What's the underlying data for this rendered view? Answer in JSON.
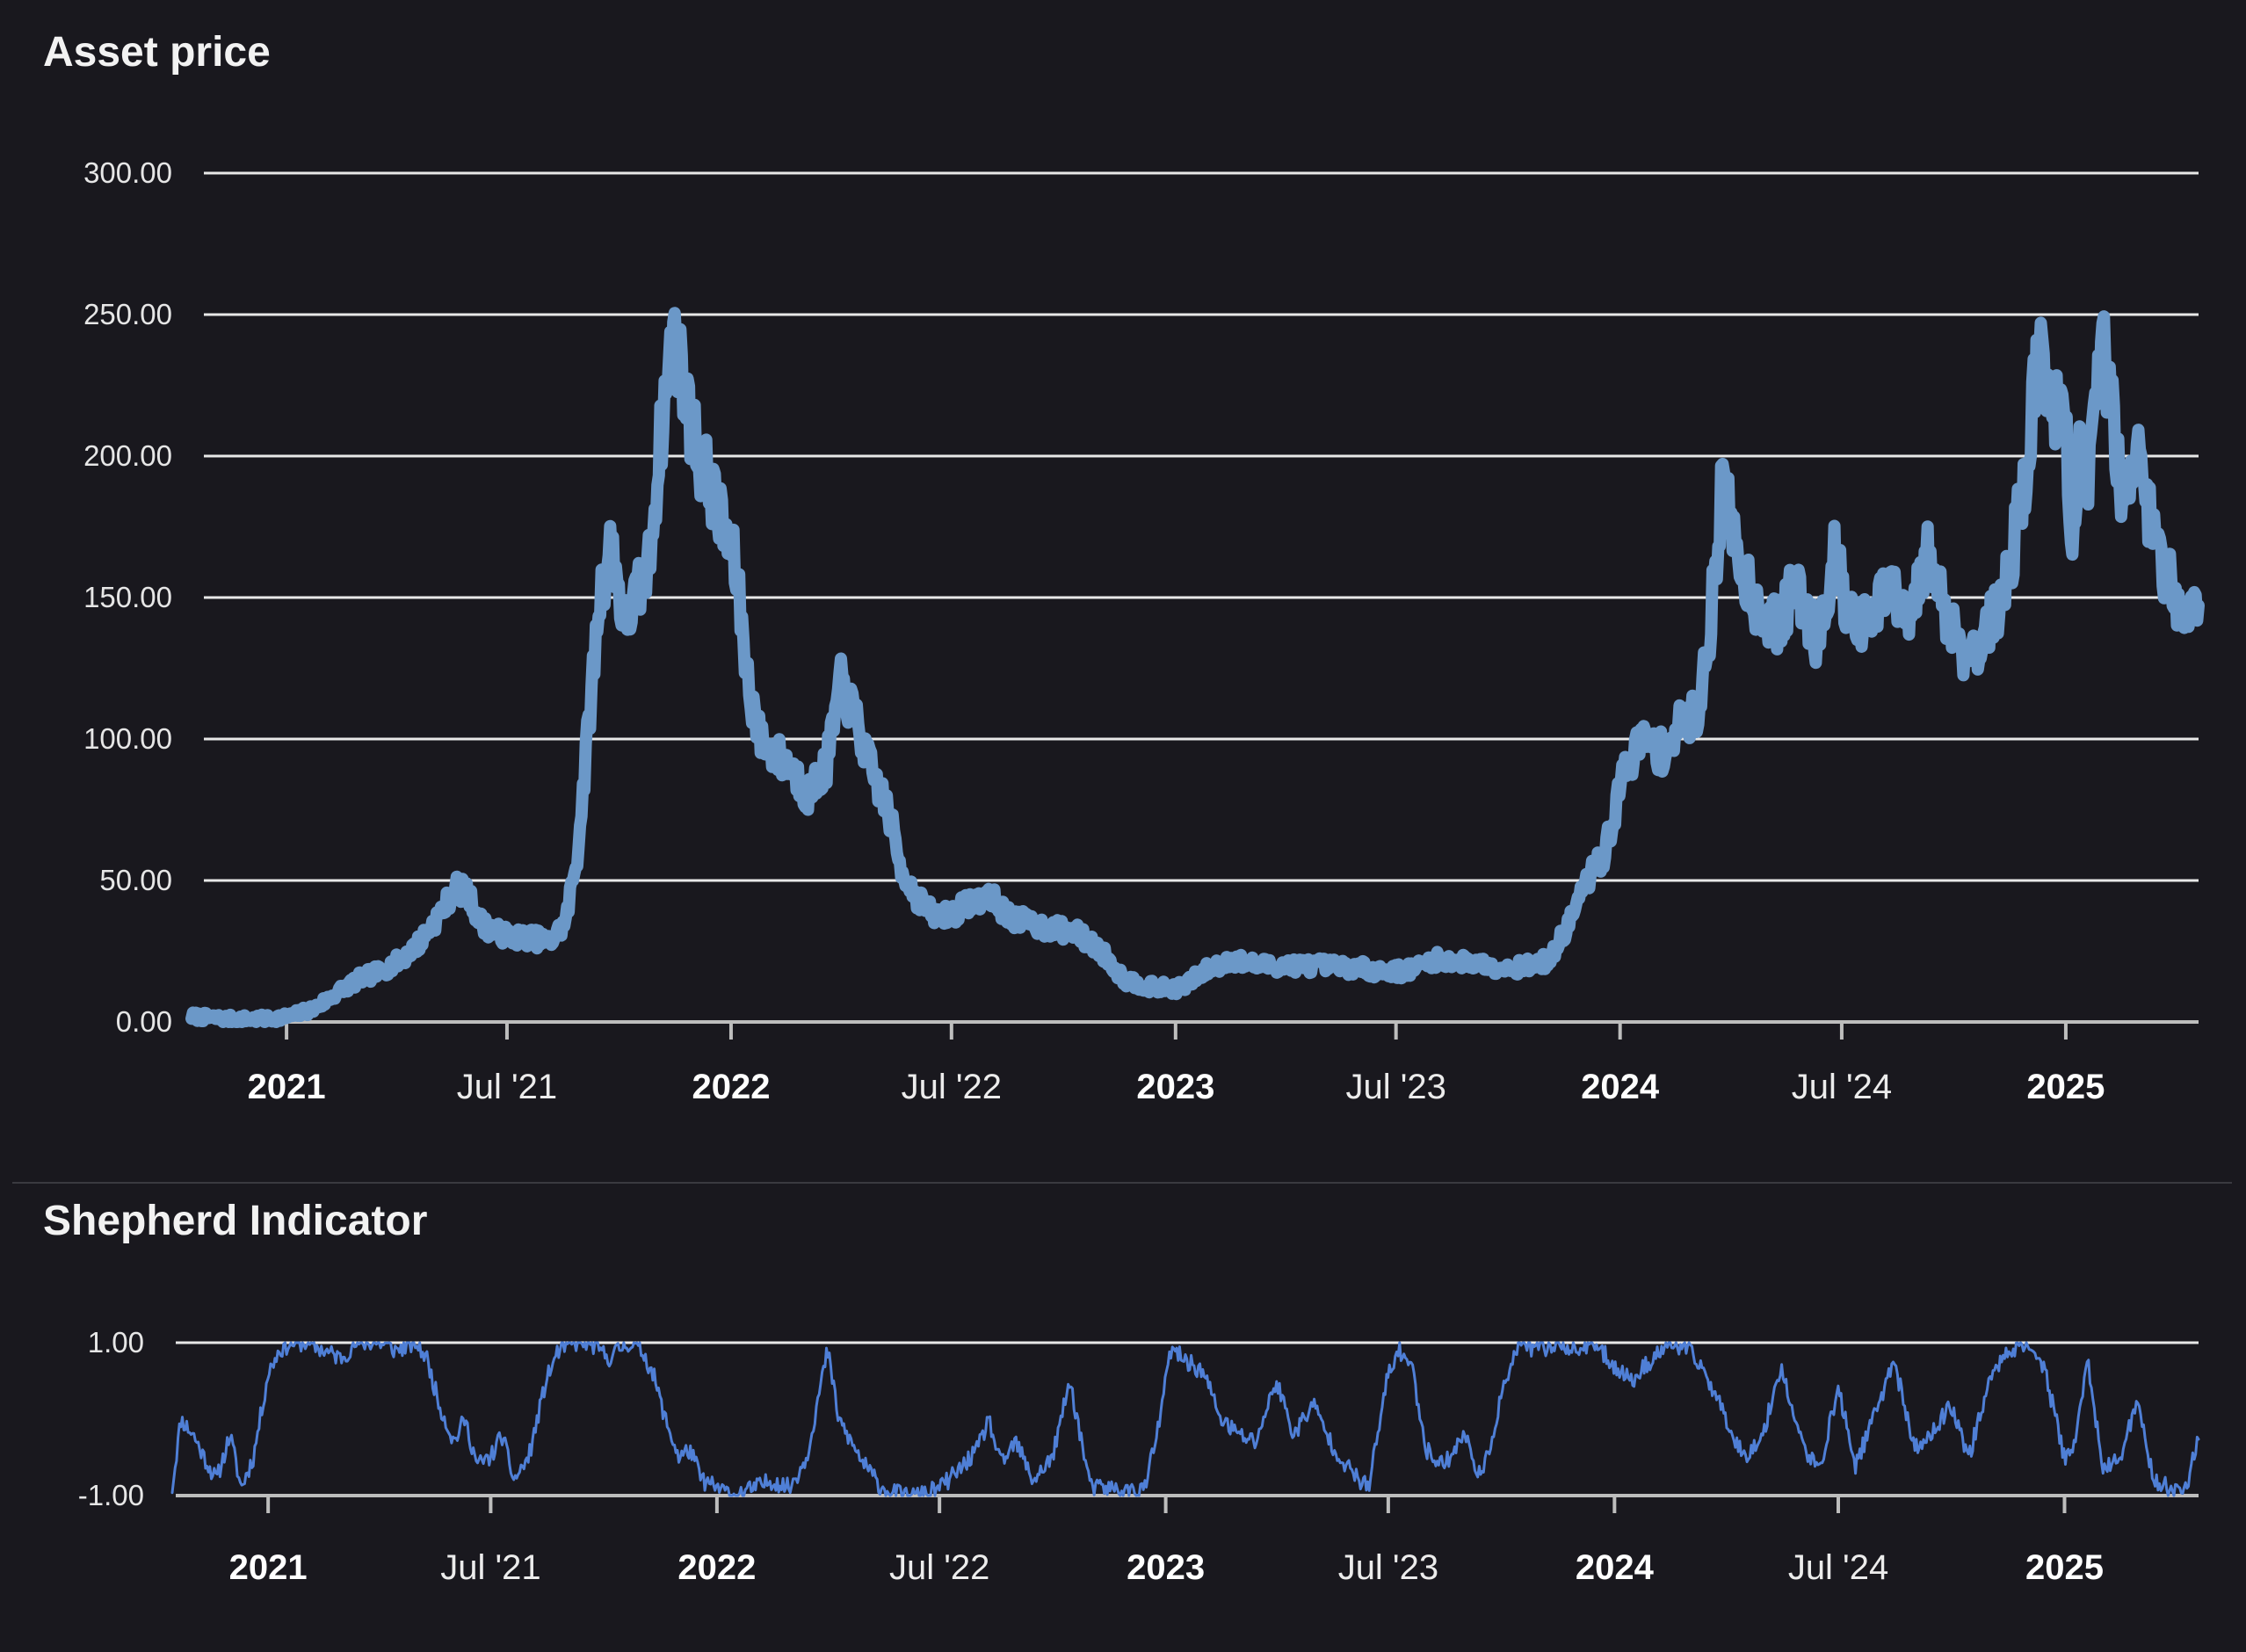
{
  "chart_data": [
    {
      "type": "line",
      "title": "Asset price",
      "ylim": [
        0,
        300
      ],
      "yticks": [
        "0.00",
        "50.00",
        "100.00",
        "150.00",
        "200.00",
        "250.00",
        "300.00"
      ],
      "ytick_values": [
        0,
        50,
        100,
        150,
        200,
        250,
        300
      ],
      "xlim": [
        "2020-10-15",
        "2025-04-20"
      ],
      "xticks": [
        {
          "date": "2021-01-01",
          "label": "2021",
          "major": true
        },
        {
          "date": "2021-07-01",
          "label": "Jul '21",
          "major": false
        },
        {
          "date": "2022-01-01",
          "label": "2022",
          "major": true
        },
        {
          "date": "2022-07-01",
          "label": "Jul '22",
          "major": false
        },
        {
          "date": "2023-01-01",
          "label": "2023",
          "major": true
        },
        {
          "date": "2023-07-01",
          "label": "Jul '23",
          "major": false
        },
        {
          "date": "2024-01-01",
          "label": "2024",
          "major": true
        },
        {
          "date": "2024-07-01",
          "label": "Jul '24",
          "major": false
        },
        {
          "date": "2025-01-01",
          "label": "2025",
          "major": true
        }
      ],
      "grid": true,
      "color": "#6b98c8",
      "series": [
        {
          "x": [
            "2020-10-15",
            "2020-11-15",
            "2020-12-15",
            "2021-01-05",
            "2021-01-25",
            "2021-02-10",
            "2021-03-01",
            "2021-03-20",
            "2021-04-05",
            "2021-04-20",
            "2021-05-10",
            "2021-05-20",
            "2021-05-30",
            "2021-06-10",
            "2021-06-20",
            "2021-07-05",
            "2021-07-20",
            "2021-08-05",
            "2021-08-18",
            "2021-08-28",
            "2021-09-05",
            "2021-09-15",
            "2021-09-25",
            "2021-10-05",
            "2021-10-15",
            "2021-10-25",
            "2021-11-05",
            "2021-11-15",
            "2021-11-25",
            "2021-12-05",
            "2021-12-15",
            "2021-12-25",
            "2022-01-05",
            "2022-01-15",
            "2022-01-25",
            "2022-02-05",
            "2022-02-20",
            "2022-03-05",
            "2022-03-20",
            "2022-04-01",
            "2022-04-15",
            "2022-04-25",
            "2022-05-10",
            "2022-05-20",
            "2022-06-01",
            "2022-06-15",
            "2022-07-01",
            "2022-07-15",
            "2022-08-01",
            "2022-08-15",
            "2022-09-01",
            "2022-09-20",
            "2022-10-10",
            "2022-11-01",
            "2022-11-20",
            "2022-12-15",
            "2023-01-05",
            "2023-01-25",
            "2023-02-15",
            "2023-03-10",
            "2023-04-01",
            "2023-05-01",
            "2023-06-01",
            "2023-06-20",
            "2023-07-10",
            "2023-08-01",
            "2023-09-01",
            "2023-10-01",
            "2023-10-20",
            "2023-11-05",
            "2023-11-20",
            "2023-12-05",
            "2023-12-20",
            "2024-01-05",
            "2024-01-20",
            "2024-02-05",
            "2024-02-20",
            "2024-03-05",
            "2024-03-15",
            "2024-03-25",
            "2024-04-10",
            "2024-04-25",
            "2024-05-10",
            "2024-05-25",
            "2024-06-10",
            "2024-06-25",
            "2024-07-10",
            "2024-07-25",
            "2024-08-10",
            "2024-08-25",
            "2024-09-10",
            "2024-09-25",
            "2024-10-10",
            "2024-10-25",
            "2024-11-10",
            "2024-11-20",
            "2024-12-01",
            "2024-12-10",
            "2024-12-20",
            "2025-01-01",
            "2025-01-05",
            "2025-01-12",
            "2025-01-20",
            "2025-02-01",
            "2025-02-15",
            "2025-03-01",
            "2025-03-15",
            "2025-04-01",
            "2025-04-20"
          ],
          "y": [
            2,
            1,
            1,
            2,
            5,
            10,
            15,
            18,
            22,
            28,
            40,
            48,
            45,
            35,
            32,
            30,
            30,
            28,
            35,
            60,
            100,
            150,
            170,
            140,
            150,
            160,
            210,
            245,
            220,
            200,
            190,
            175,
            160,
            120,
            100,
            95,
            90,
            80,
            90,
            120,
            105,
            90,
            75,
            55,
            45,
            38,
            38,
            42,
            45,
            38,
            35,
            33,
            32,
            25,
            15,
            12,
            12,
            18,
            22,
            20,
            20,
            20,
            19,
            18,
            18,
            22,
            21,
            19,
            20,
            22,
            35,
            50,
            60,
            90,
            100,
            95,
            105,
            110,
            140,
            190,
            160,
            145,
            140,
            155,
            135,
            165,
            140,
            140,
            155,
            140,
            165,
            145,
            130,
            135,
            150,
            170,
            200,
            240,
            220,
            210,
            170,
            200,
            190,
            240,
            190,
            200,
            170,
            150,
            145
          ]
        }
      ]
    },
    {
      "type": "line",
      "title": "Shepherd Indicator",
      "ylim": [
        -1,
        1
      ],
      "yticks": [
        "-1.00",
        "1.00"
      ],
      "ytick_values": [
        -1,
        1
      ],
      "xlim": [
        "2020-10-15",
        "2025-04-20"
      ],
      "xticks": [
        {
          "date": "2021-01-01",
          "label": "2021",
          "major": true
        },
        {
          "date": "2021-07-01",
          "label": "Jul '21",
          "major": false
        },
        {
          "date": "2022-01-01",
          "label": "2022",
          "major": true
        },
        {
          "date": "2022-07-01",
          "label": "Jul '22",
          "major": false
        },
        {
          "date": "2023-01-01",
          "label": "2023",
          "major": true
        },
        {
          "date": "2023-07-01",
          "label": "Jul '23",
          "major": false
        },
        {
          "date": "2024-01-01",
          "label": "2024",
          "major": true
        },
        {
          "date": "2024-07-01",
          "label": "Jul '24",
          "major": false
        },
        {
          "date": "2025-01-01",
          "label": "2025",
          "major": true
        }
      ],
      "grid": true,
      "color": "#4f7fd6",
      "series": [
        {
          "x": [
            "2020-10-15",
            "2020-10-22",
            "2020-11-01",
            "2020-11-10",
            "2020-11-20",
            "2020-12-01",
            "2020-12-10",
            "2020-12-20",
            "2021-01-01",
            "2021-01-10",
            "2021-01-20",
            "2021-02-01",
            "2021-02-15",
            "2021-03-01",
            "2021-03-15",
            "2021-04-01",
            "2021-04-15",
            "2021-05-01",
            "2021-05-10",
            "2021-05-20",
            "2021-06-01",
            "2021-06-10",
            "2021-06-20",
            "2021-07-01",
            "2021-07-10",
            "2021-07-20",
            "2021-08-01",
            "2021-08-15",
            "2021-08-25",
            "2021-09-05",
            "2021-09-20",
            "2021-10-05",
            "2021-10-20",
            "2021-11-01",
            "2021-11-10",
            "2021-11-20",
            "2021-12-01",
            "2021-12-10",
            "2021-12-20",
            "2022-01-01",
            "2022-01-15",
            "2022-02-01",
            "2022-02-15",
            "2022-03-01",
            "2022-03-15",
            "2022-04-01",
            "2022-04-10",
            "2022-04-20",
            "2022-05-01",
            "2022-05-15",
            "2022-06-01",
            "2022-06-15",
            "2022-07-01",
            "2022-07-15",
            "2022-08-01",
            "2022-08-10",
            "2022-08-20",
            "2022-09-01",
            "2022-09-15",
            "2022-10-01",
            "2022-10-15",
            "2022-11-01",
            "2022-11-15",
            "2022-12-01",
            "2022-12-15",
            "2022-12-25",
            "2023-01-05",
            "2023-01-15",
            "2023-02-01",
            "2023-02-15",
            "2023-03-01",
            "2023-03-15",
            "2023-04-01",
            "2023-04-15",
            "2023-05-01",
            "2023-05-15",
            "2023-06-01",
            "2023-06-15",
            "2023-07-01",
            "2023-07-10",
            "2023-07-20",
            "2023-08-01",
            "2023-08-15",
            "2023-09-01",
            "2023-09-15",
            "2023-10-01",
            "2023-10-15",
            "2023-11-01",
            "2023-11-15",
            "2023-12-01",
            "2023-12-15",
            "2024-01-01",
            "2024-01-15",
            "2024-02-01",
            "2024-02-15",
            "2024-03-01",
            "2024-03-15",
            "2024-04-01",
            "2024-04-15",
            "2024-05-01",
            "2024-05-15",
            "2024-06-01",
            "2024-06-15",
            "2024-07-01",
            "2024-07-15",
            "2024-08-01",
            "2024-08-15",
            "2024-09-01",
            "2024-09-15",
            "2024-10-01",
            "2024-10-15",
            "2024-11-01",
            "2024-11-15",
            "2024-12-01",
            "2024-12-15",
            "2025-01-01",
            "2025-01-10",
            "2025-01-20",
            "2025-02-01",
            "2025-02-15",
            "2025-03-01",
            "2025-03-15",
            "2025-04-01",
            "2025-04-10",
            "2025-04-20"
          ],
          "y": [
            -0.9,
            0.0,
            -0.2,
            -0.5,
            -0.8,
            -0.2,
            -0.9,
            -0.5,
            0.6,
            0.9,
            1.0,
            1.0,
            0.9,
            0.8,
            1.0,
            1.0,
            0.9,
            1.0,
            0.8,
            0.2,
            -0.3,
            0.0,
            -0.6,
            -0.5,
            -0.2,
            -0.8,
            -0.5,
            0.5,
            0.9,
            1.0,
            1.0,
            0.8,
            1.0,
            0.9,
            0.6,
            0.0,
            -0.5,
            -0.4,
            -0.8,
            -0.9,
            -1.0,
            -0.9,
            -0.8,
            -0.9,
            -0.5,
            0.9,
            0.0,
            -0.3,
            -0.6,
            -0.9,
            -1.0,
            -1.0,
            -0.9,
            -0.7,
            -0.4,
            0.0,
            -0.6,
            -0.3,
            -0.8,
            -0.5,
            0.5,
            -0.9,
            -0.9,
            -0.95,
            -0.9,
            -0.2,
            0.9,
            0.8,
            0.6,
            0.0,
            -0.2,
            -0.3,
            0.5,
            -0.2,
            0.2,
            -0.3,
            -0.7,
            -0.9,
            0.6,
            0.9,
            0.7,
            -0.4,
            -0.6,
            -0.2,
            -0.8,
            0.3,
            1.0,
            0.9,
            1.0,
            0.9,
            1.0,
            0.7,
            0.5,
            0.8,
            1.0,
            0.9,
            0.6,
            0.0,
            -0.5,
            -0.2,
            0.7,
            -0.3,
            -0.7,
            0.4,
            -0.6,
            0.1,
            0.8,
            -0.4,
            -0.2,
            0.2,
            -0.5,
            0.5,
            0.9,
            1.0,
            0.7,
            -0.5,
            -0.3,
            0.8,
            -0.7,
            -0.5,
            0.2,
            -0.8,
            -0.95,
            -0.9,
            -0.2
          ]
        }
      ]
    }
  ]
}
